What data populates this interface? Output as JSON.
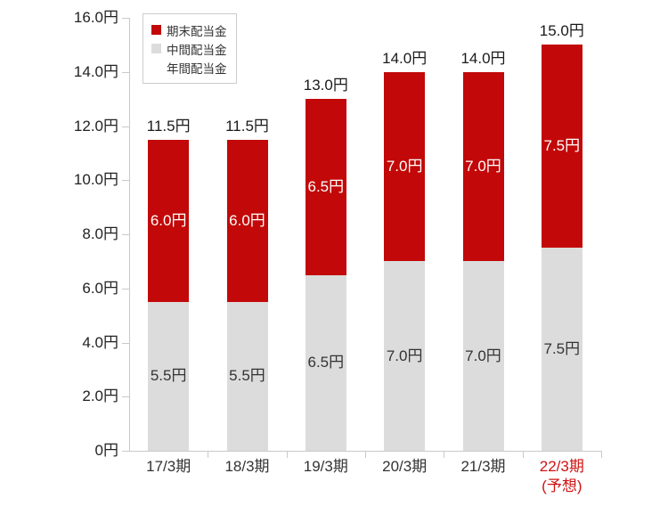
{
  "chart_data": {
    "type": "bar",
    "stacked": true,
    "title": "",
    "unit": "円",
    "categories": [
      {
        "label": "17/3期",
        "sublabel": "",
        "highlight": false
      },
      {
        "label": "18/3期",
        "sublabel": "",
        "highlight": false
      },
      {
        "label": "19/3期",
        "sublabel": "",
        "highlight": false
      },
      {
        "label": "20/3期",
        "sublabel": "",
        "highlight": false
      },
      {
        "label": "21/3期",
        "sublabel": "",
        "highlight": false
      },
      {
        "label": "22/3期",
        "sublabel": "(予想)",
        "highlight": true
      }
    ],
    "series": [
      {
        "name": "中間配当金",
        "color": "#dcdcdc",
        "values": [
          5.5,
          5.5,
          6.5,
          7.0,
          7.0,
          7.5
        ],
        "labels": [
          "5.5円",
          "5.5円",
          "6.5円",
          "7.0円",
          "7.0円",
          "7.5円"
        ],
        "label_color": "#333333"
      },
      {
        "name": "期末配当金",
        "color": "#c20808",
        "values": [
          6.0,
          6.0,
          6.5,
          7.0,
          7.0,
          7.5
        ],
        "labels": [
          "6.0円",
          "6.0円",
          "6.5円",
          "7.0円",
          "7.0円",
          "7.5円"
        ],
        "label_color": "#ffffff"
      }
    ],
    "totals": {
      "name": "年間配当金",
      "values": [
        11.5,
        11.5,
        13.0,
        14.0,
        14.0,
        15.0
      ],
      "labels": [
        "11.5円",
        "11.5円",
        "13.0円",
        "14.0円",
        "14.0円",
        "15.0円"
      ],
      "label_color": "#1a1a1a"
    },
    "y_axis": {
      "min": 0,
      "max": 16,
      "step": 2,
      "tick_labels": [
        "0円",
        "2.0円",
        "4.0円",
        "6.0円",
        "8.0円",
        "10.0円",
        "12.0円",
        "14.0円",
        "16.0円"
      ]
    },
    "legend": {
      "position": "top-left",
      "entries": [
        {
          "label": "期末配当金",
          "color": "#c20808"
        },
        {
          "label": "中間配当金",
          "color": "#dcdcdc"
        },
        {
          "label": "年間配当金",
          "color": null
        }
      ]
    },
    "grid": false
  },
  "colors": {
    "background": "#ffffff",
    "axis": "#c9c9c9",
    "tick": "#c9c9c9",
    "y_label": "#222222",
    "x_label": "#333333",
    "x_label_highlight": "#cf1212",
    "legend_border": "#cccccc",
    "legend_text": "#333333"
  }
}
